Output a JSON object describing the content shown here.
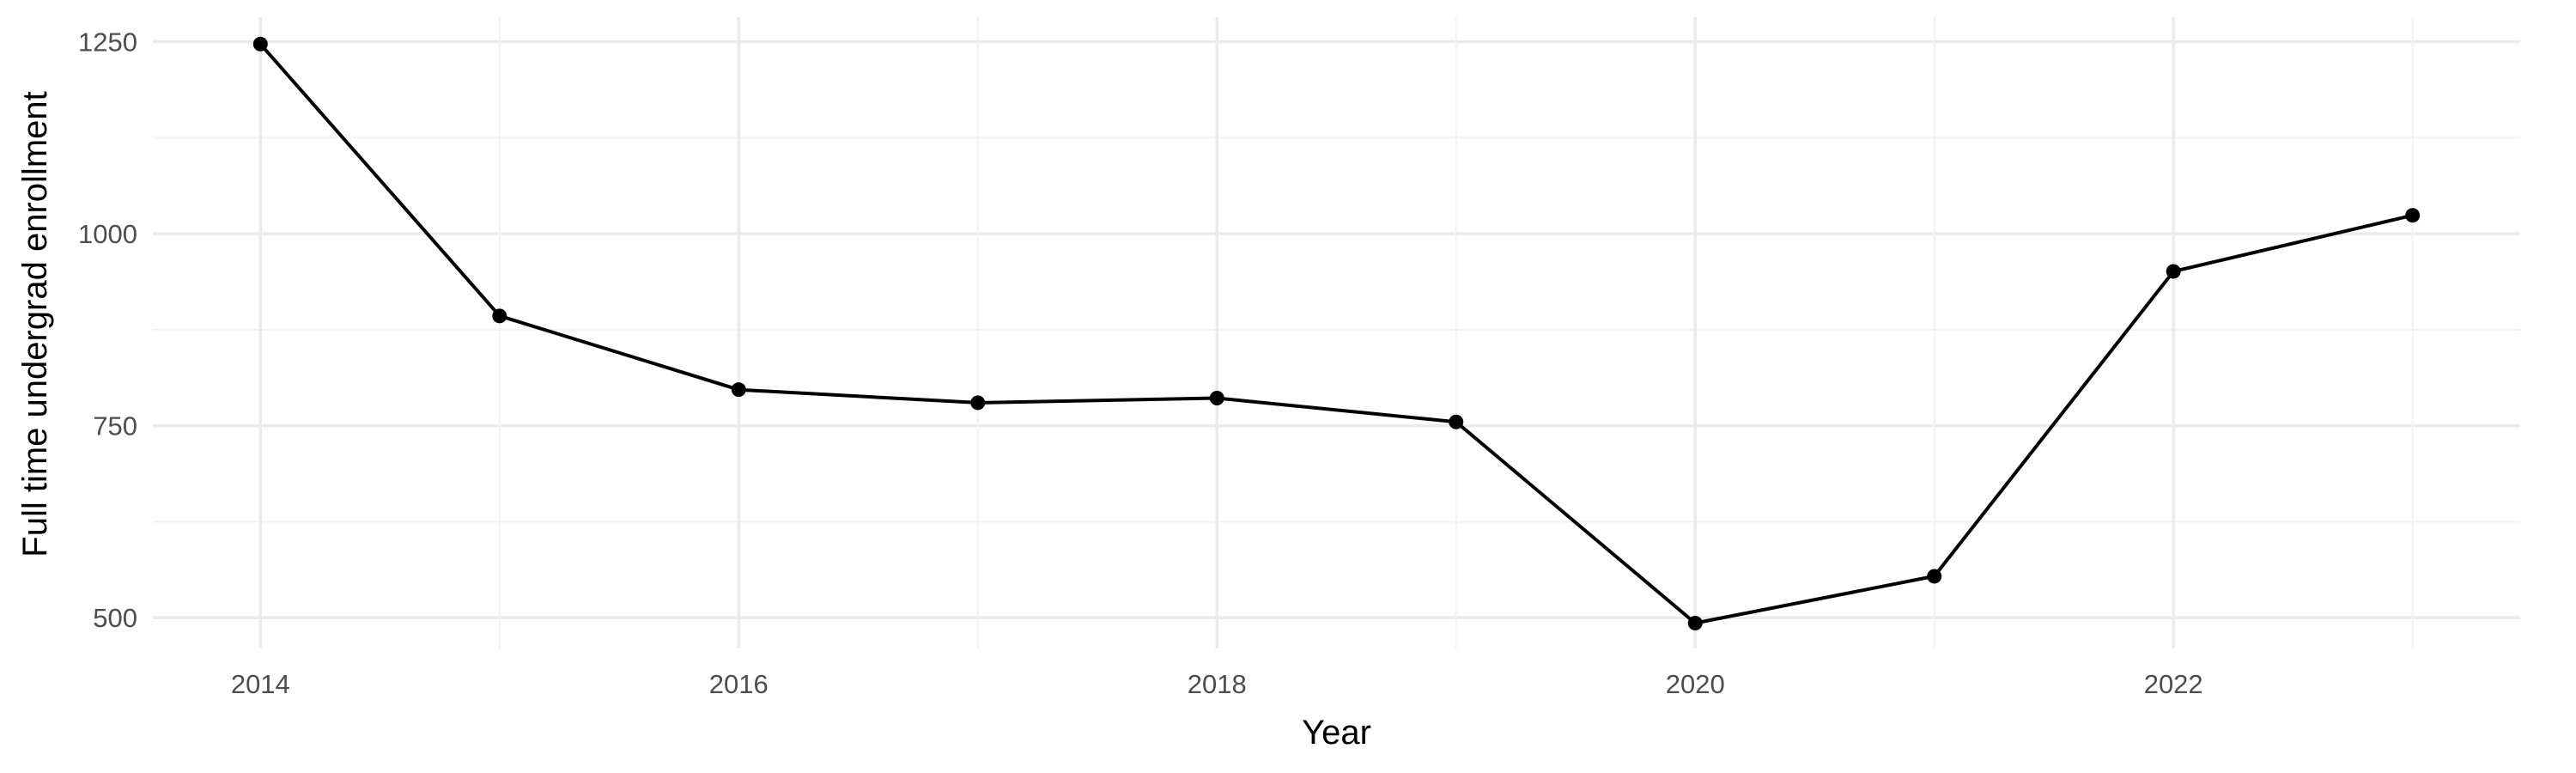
{
  "chart_data": {
    "type": "line",
    "xlabel": "Year",
    "ylabel": "Full time undergrad enrollment",
    "x": [
      2014,
      2015,
      2016,
      2017,
      2018,
      2019,
      2020,
      2021,
      2022,
      2023
    ],
    "series": [
      {
        "values": [
          1247,
          893,
          797,
          780,
          786,
          755,
          493,
          554,
          951,
          1024
        ]
      }
    ],
    "x_ticks": [
      "2014",
      "2016",
      "2018",
      "2020",
      "2022"
    ],
    "y_ticks": [
      "500",
      "750",
      "1000",
      "1250"
    ],
    "xlim": [
      2013.55,
      2023.45
    ],
    "ylim": [
      460,
      1282
    ],
    "grid": true,
    "colors": {
      "line": "#000000",
      "grid": "#ebebeb",
      "text": "#4d4d4d"
    }
  }
}
